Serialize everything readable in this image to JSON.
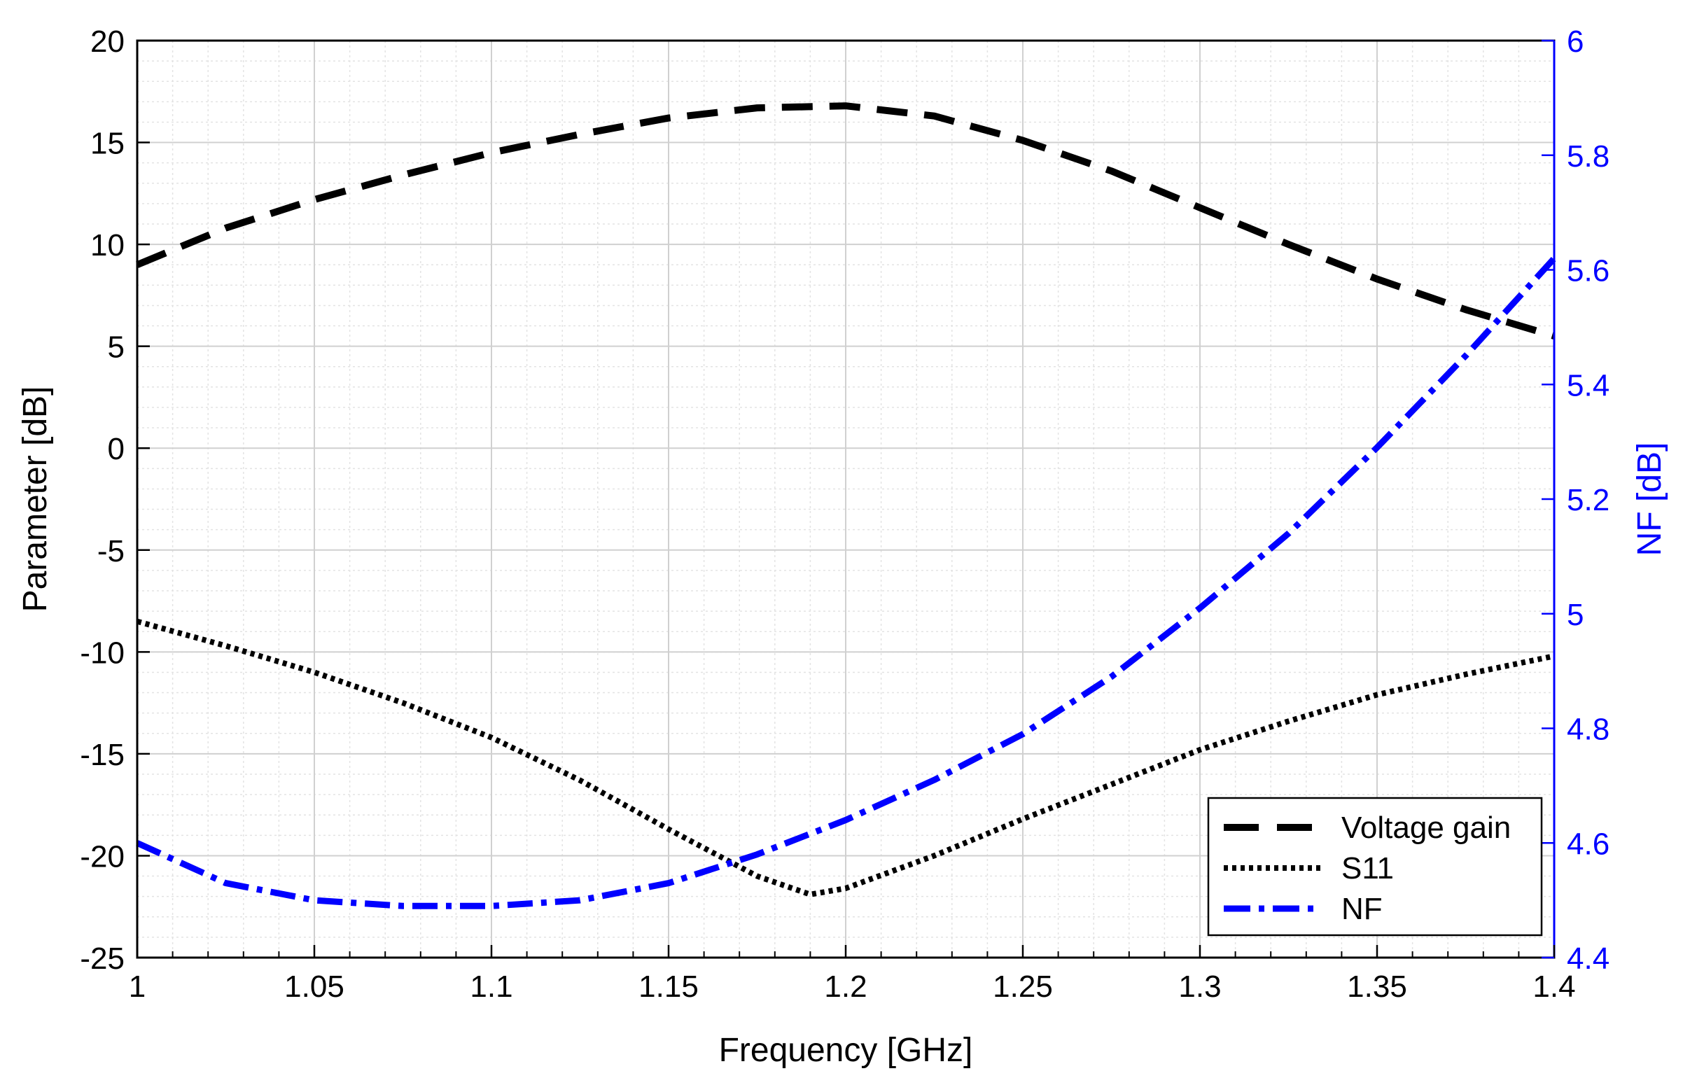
{
  "chart_data": {
    "type": "line",
    "xlabel": "Frequency [GHz]",
    "ylabel_left": "Parameter [dB]",
    "ylabel_right": "NF [dB]",
    "xlim": [
      1,
      1.4
    ],
    "ylim_left": [
      -25,
      20
    ],
    "ylim_right": [
      4.4,
      6
    ],
    "x_ticks": [
      1,
      1.05,
      1.1,
      1.15,
      1.2,
      1.25,
      1.3,
      1.35,
      1.4
    ],
    "x_tick_labels": [
      "1",
      "1.05",
      "1.1",
      "1.15",
      "1.2",
      "1.25",
      "1.3",
      "1.35",
      "1.4"
    ],
    "y_left_ticks": [
      20,
      15,
      10,
      5,
      0,
      -5,
      -10,
      -15,
      -20,
      -25
    ],
    "y_left_tick_labels": [
      "20",
      "15",
      "10",
      "5",
      "0",
      "-5",
      "-10",
      "-15",
      "-20",
      "-25"
    ],
    "y_right_ticks": [
      6,
      5.8,
      5.6,
      5.4,
      5.2,
      5,
      4.8,
      4.6,
      4.4
    ],
    "y_right_tick_labels": [
      "6",
      "5.8",
      "5.6",
      "5.4",
      "5.2",
      "5",
      "4.8",
      "4.6",
      "4.4"
    ],
    "grid": "on (major and minor)",
    "legend_position": "bottom-right",
    "colors": {
      "black": "#000000",
      "blue": "#0000ff",
      "grid": "#d9d9d9"
    },
    "series": [
      {
        "name": "Voltage gain",
        "axis": "left",
        "style": "dashed",
        "color": "#000000",
        "x": [
          1.0,
          1.025,
          1.05,
          1.075,
          1.1,
          1.125,
          1.15,
          1.175,
          1.2,
          1.225,
          1.25,
          1.275,
          1.3,
          1.325,
          1.35,
          1.375,
          1.4
        ],
        "y": [
          9.0,
          10.8,
          12.2,
          13.4,
          14.5,
          15.4,
          16.2,
          16.7,
          16.8,
          16.3,
          15.1,
          13.6,
          11.8,
          10.0,
          8.3,
          6.8,
          5.5
        ]
      },
      {
        "name": "S11",
        "axis": "left",
        "style": "dotted",
        "color": "#000000",
        "x": [
          1.0,
          1.025,
          1.05,
          1.075,
          1.1,
          1.125,
          1.15,
          1.175,
          1.19,
          1.2,
          1.225,
          1.25,
          1.275,
          1.3,
          1.325,
          1.35,
          1.375,
          1.4
        ],
        "y": [
          -8.5,
          -9.7,
          -11.0,
          -12.5,
          -14.2,
          -16.3,
          -18.7,
          -21.0,
          -21.9,
          -21.6,
          -20.0,
          -18.2,
          -16.5,
          -14.8,
          -13.4,
          -12.1,
          -11.1,
          -10.2
        ]
      },
      {
        "name": "NF",
        "axis": "right",
        "style": "dashdot",
        "color": "#0000ff",
        "x": [
          1.0,
          1.025,
          1.05,
          1.075,
          1.1,
          1.125,
          1.15,
          1.175,
          1.2,
          1.225,
          1.25,
          1.275,
          1.3,
          1.325,
          1.35,
          1.375,
          1.4
        ],
        "y": [
          4.6,
          4.53,
          4.5,
          4.49,
          4.49,
          4.5,
          4.53,
          4.58,
          4.64,
          4.71,
          4.79,
          4.89,
          5.01,
          5.14,
          5.29,
          5.45,
          5.62
        ]
      }
    ]
  }
}
